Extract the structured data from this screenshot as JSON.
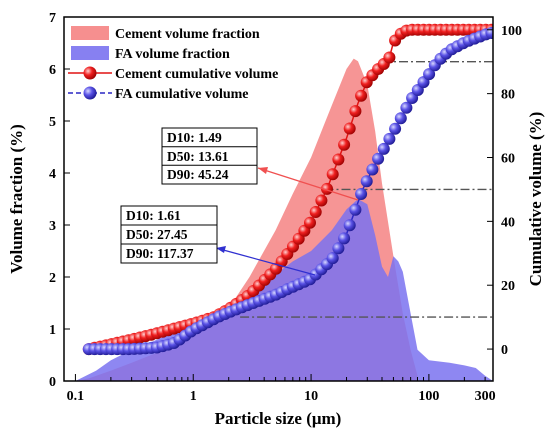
{
  "chart_data": {
    "type": "area",
    "xlabel": "Particle size (μm)",
    "ylabel_left": "Volume fraction (%)",
    "ylabel_right": "Cumulative volume (%)",
    "x_scale": "log",
    "xlim": [
      0.08,
      350
    ],
    "ylim_left": [
      0,
      7
    ],
    "ylim_right": [
      -10,
      104
    ],
    "x_ticks": [
      {
        "value": 0.1,
        "label": "0.1"
      },
      {
        "value": 1,
        "label": "1"
      },
      {
        "value": 10,
        "label": "10"
      },
      {
        "value": 100,
        "label": "100"
      },
      {
        "value": 300,
        "label": "300"
      }
    ],
    "y_left_ticks": [
      0,
      1,
      2,
      3,
      4,
      5,
      6,
      7
    ],
    "y_right_ticks": [
      0,
      20,
      40,
      60,
      80,
      100
    ],
    "legend_position": "top-left",
    "legend": [
      "Cement volume fraction",
      "FA  volume fraction",
      "Cement cumulative volume",
      "FA  cumulative volume"
    ],
    "series": [
      {
        "name": "Cement volume fraction",
        "kind": "area",
        "axis": "left",
        "color": "#f47b7b",
        "x": [
          0.1,
          0.13,
          0.2,
          0.3,
          0.5,
          0.7,
          1,
          1.5,
          2,
          3,
          5,
          7,
          10,
          13,
          15,
          20,
          23,
          25,
          30,
          35,
          40,
          50,
          60,
          70,
          80
        ],
        "y": [
          0.0,
          0.05,
          0.2,
          0.35,
          0.55,
          0.7,
          0.85,
          1.1,
          1.4,
          2.0,
          2.9,
          3.6,
          4.3,
          4.95,
          5.3,
          6.0,
          6.2,
          6.15,
          5.7,
          4.8,
          3.8,
          2.4,
          1.3,
          0.6,
          0.1
        ]
      },
      {
        "name": "FA  volume fraction",
        "kind": "area",
        "axis": "left",
        "color": "#7a72f0",
        "x": [
          0.1,
          0.15,
          0.2,
          0.3,
          0.5,
          0.7,
          1,
          1.5,
          2,
          3,
          5,
          7,
          10,
          15,
          20,
          25,
          30,
          35,
          40,
          45,
          50,
          55,
          60,
          70,
          80,
          100,
          150,
          200,
          250,
          300,
          350
        ],
        "y": [
          0.0,
          0.2,
          0.4,
          0.6,
          0.8,
          0.95,
          1.1,
          1.3,
          1.5,
          1.75,
          2.05,
          2.3,
          2.5,
          2.9,
          3.3,
          3.5,
          3.4,
          2.8,
          2.2,
          2.0,
          2.4,
          2.3,
          2.1,
          1.3,
          0.6,
          0.4,
          0.35,
          0.3,
          0.25,
          0.1,
          0.0
        ]
      },
      {
        "name": "Cement cumulative volume",
        "kind": "line-markers",
        "axis": "right",
        "color": "#e01414",
        "x": [
          0.13,
          0.2,
          0.3,
          0.5,
          0.7,
          1,
          1.49,
          2,
          3,
          5,
          7,
          10,
          13.61,
          15,
          20,
          25,
          30,
          40,
          45.24,
          50,
          60,
          70,
          100,
          150,
          200,
          300,
          340
        ],
        "y": [
          0,
          1.5,
          3,
          5,
          6.5,
          8,
          10,
          12.5,
          17,
          25,
          32,
          40,
          50,
          54,
          66,
          77,
          84,
          89,
          90,
          96,
          99.5,
          100,
          100,
          100,
          100,
          100,
          100
        ]
      },
      {
        "name": "FA  cumulative volume",
        "kind": "line-markers",
        "axis": "right",
        "color": "#2a26c4",
        "x": [
          0.13,
          0.2,
          0.3,
          0.5,
          0.7,
          1,
          1.61,
          2,
          3,
          5,
          7,
          10,
          15,
          20,
          27.45,
          35,
          50,
          70,
          100,
          117.37,
          150,
          200,
          300,
          340
        ],
        "y": [
          0,
          0,
          0,
          0.5,
          2,
          6,
          10,
          11.5,
          14,
          17,
          19.5,
          22,
          28,
          36,
          50,
          58,
          68,
          78,
          86,
          90,
          93.5,
          96,
          98.5,
          99
        ]
      }
    ],
    "reference_lines_right": [
      10,
      50,
      90
    ],
    "annotations": [
      {
        "lines": [
          "D10: 1.49",
          "D50: 13.61",
          "D90: 45.24"
        ],
        "series": "Cement cumulative volume"
      },
      {
        "lines": [
          "D10: 1.61",
          "D50: 27.45",
          "D90: 117.37"
        ],
        "series": "FA  cumulative volume"
      }
    ]
  }
}
